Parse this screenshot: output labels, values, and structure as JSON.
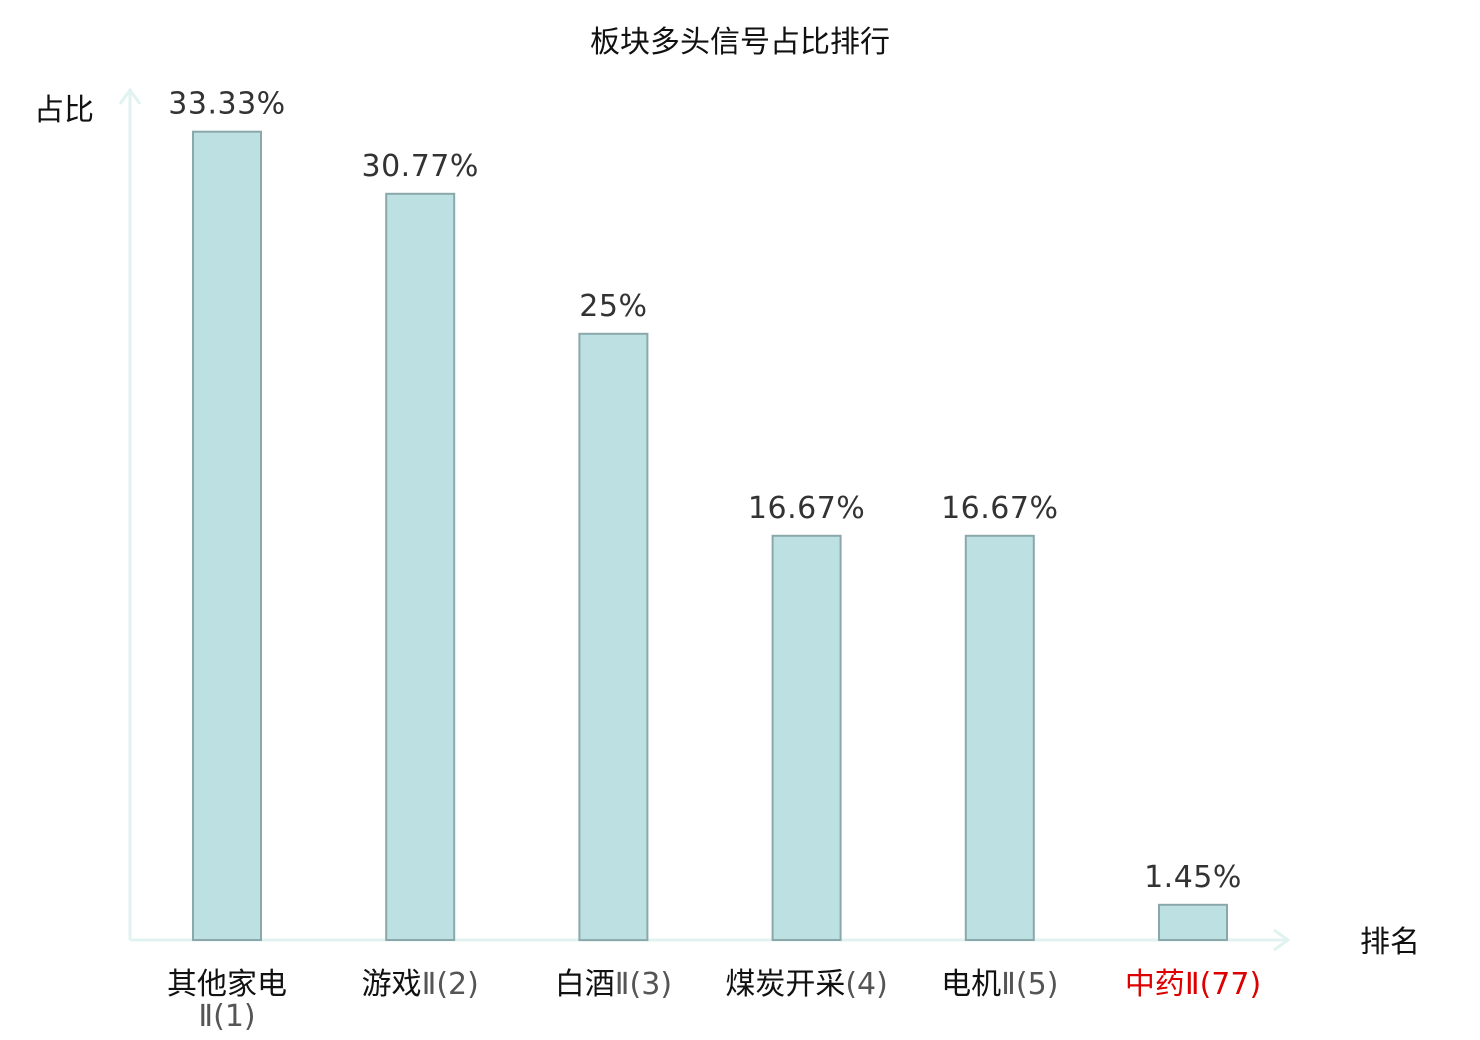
{
  "chart_data": {
    "type": "bar",
    "title": "板块多头信号占比排行",
    "ylabel": "占比",
    "xlabel": "排名",
    "categories": [
      {
        "name": "其他家电",
        "suffix": "Ⅱ(1)",
        "wrap": true
      },
      {
        "name": "游戏",
        "suffix": "Ⅱ(2)",
        "wrap": false
      },
      {
        "name": "白酒",
        "suffix": "Ⅱ(3)",
        "wrap": false
      },
      {
        "name": "煤炭开采",
        "suffix": "(4)",
        "wrap": false
      },
      {
        "name": "电机",
        "suffix": "Ⅱ(5)",
        "wrap": false
      },
      {
        "name": "中药",
        "suffix": "Ⅱ(77)",
        "wrap": false,
        "highlight": true
      }
    ],
    "values": [
      33.33,
      30.77,
      25,
      16.67,
      16.67,
      1.45
    ],
    "value_labels": [
      "33.33%",
      "30.77%",
      "25%",
      "16.67%",
      "16.67%",
      "1.45%"
    ],
    "ylim": [
      0,
      35
    ],
    "grid": false,
    "colors": {
      "bar_fill": "#bde0e3",
      "bar_stroke": "#8aa8aa",
      "axis": "#e1f3f0",
      "highlight": "#dd0000"
    }
  }
}
